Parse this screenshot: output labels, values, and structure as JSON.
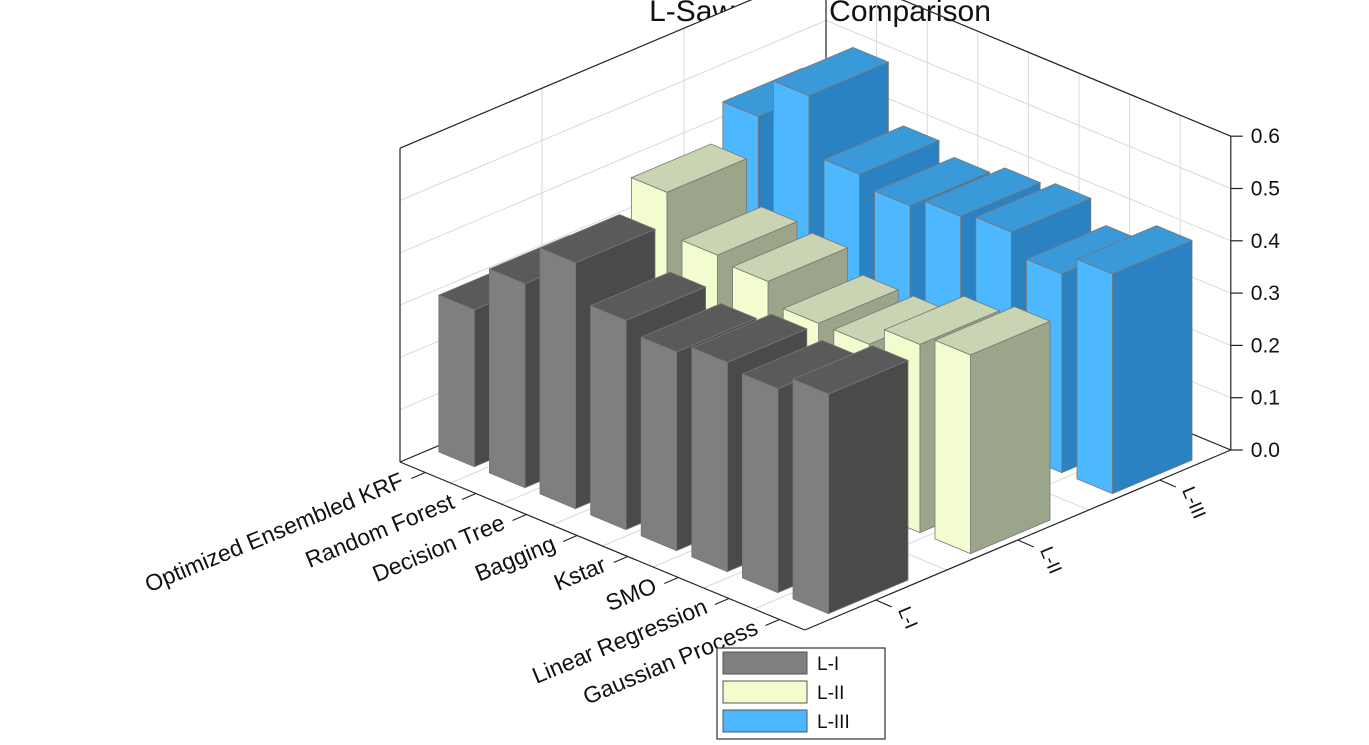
{
  "chart_data": {
    "type": "bar",
    "title": "L-Saw Score Comparison",
    "categories": [
      "Optimized Ensembled KRF",
      "Random Forest",
      "Decision Tree",
      "Bagging",
      "Kstar",
      "SMO",
      "Linear Regression",
      "Gaussian Process"
    ],
    "series": [
      {
        "name": "L-I",
        "color": "#7f7f7f",
        "values": [
          0.3,
          0.39,
          0.47,
          0.4,
          0.38,
          0.4,
          0.39,
          0.42
        ]
      },
      {
        "name": "L-II",
        "color": "#f3fcce",
        "values": [
          0.29,
          0.45,
          0.37,
          0.36,
          0.32,
          0.32,
          0.36,
          0.38
        ]
      },
      {
        "name": "L-III",
        "color": "#4db8ff",
        "values": [
          0.44,
          0.52,
          0.41,
          0.39,
          0.41,
          0.42,
          0.38,
          0.42
        ]
      }
    ],
    "zlim": [
      0.0,
      0.6
    ],
    "zticks": [
      "0.0",
      "0.1",
      "0.2",
      "0.3",
      "0.4",
      "0.5",
      "0.6"
    ],
    "grid": true,
    "legend": "bottom-center"
  }
}
